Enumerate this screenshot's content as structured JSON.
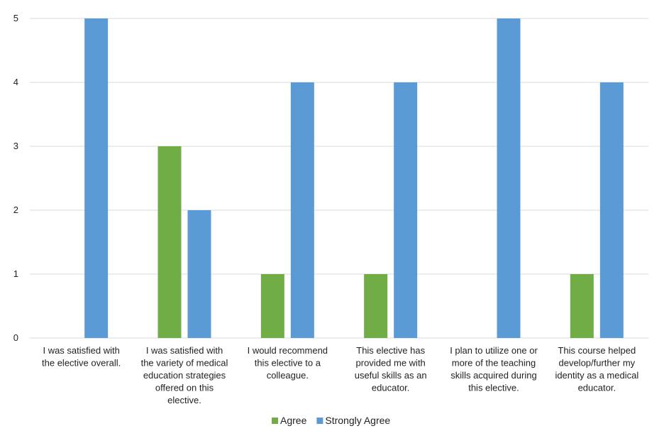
{
  "chart_data": {
    "type": "bar",
    "title": "",
    "xlabel": "",
    "ylabel": "",
    "ylim": [
      0,
      5
    ],
    "yticks": [
      0,
      1,
      2,
      3,
      4,
      5
    ],
    "grid": true,
    "legend_position": "bottom",
    "categories": [
      [
        "I was satisfied with",
        "the elective overall."
      ],
      [
        "I was satisfied with",
        "the variety of medical",
        "education strategies",
        "offered on this",
        "elective."
      ],
      [
        "I would recommend",
        "this elective to a",
        "colleague."
      ],
      [
        "This elective has",
        "provided me with",
        "useful skills as an",
        "educator."
      ],
      [
        "I plan to utilize one or",
        "more of the teaching",
        "skills acquired during",
        "this elective."
      ],
      [
        "This course helped",
        "develop/further my",
        "identity as a medical",
        "educator."
      ]
    ],
    "series": [
      {
        "name": "Agree",
        "color": "#70AD47",
        "values": [
          0,
          3,
          1,
          1,
          0,
          1
        ]
      },
      {
        "name": "Strongly Agree",
        "color": "#5B9BD5",
        "values": [
          5,
          2,
          4,
          4,
          5,
          4
        ]
      }
    ]
  }
}
